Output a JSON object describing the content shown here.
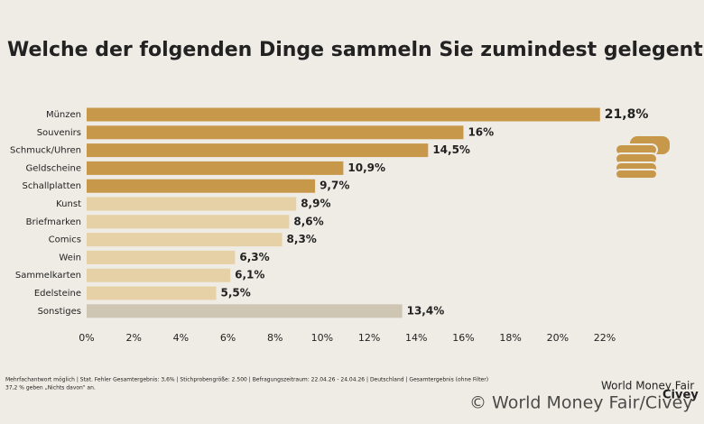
{
  "chart_data": {
    "type": "hbar",
    "title": "Welche der folgenden Dinge sammeln Sie zumindest gelegentlich?",
    "categories": [
      "Münzen",
      "Souvenirs",
      "Schmuck/Uhren",
      "Geldscheine",
      "Schallplatten",
      "Kunst",
      "Briefmarken",
      "Comics",
      "Wein",
      "Sammelkarten",
      "Edelsteine",
      "Sonstiges"
    ],
    "values": [
      21.8,
      16,
      14.5,
      10.9,
      9.7,
      8.9,
      8.6,
      8.3,
      6.3,
      6.1,
      5.5,
      13.4
    ],
    "value_labels": [
      "21,8%",
      "16%",
      "14,5%",
      "10,9%",
      "9,7%",
      "8,9%",
      "8,6%",
      "8,3%",
      "6,3%",
      "6,1%",
      "5,5%",
      "13,4%"
    ],
    "colors": [
      "#c8984a",
      "#c8984a",
      "#c8984a",
      "#c8984a",
      "#c8984a",
      "#e6d0a6",
      "#e6d0a6",
      "#e6d0a6",
      "#e6d0a6",
      "#e6d0a6",
      "#e6d0a6",
      "#cec6b3"
    ],
    "xlim": [
      0,
      22
    ],
    "xticks": [
      {
        "value": 0,
        "label": "0%"
      },
      {
        "value": 2,
        "label": "2%"
      },
      {
        "value": 4,
        "label": "4%"
      },
      {
        "value": 6,
        "label": "6%"
      },
      {
        "value": 8,
        "label": "8%"
      },
      {
        "value": 10,
        "label": "10%"
      },
      {
        "value": 12,
        "label": "12%"
      },
      {
        "value": 14,
        "label": "14%"
      },
      {
        "value": 16,
        "label": "16%"
      },
      {
        "value": 18,
        "label": "18%"
      },
      {
        "value": 20,
        "label": "20%"
      },
      {
        "value": 22,
        "label": "22%"
      }
    ]
  },
  "footer": {
    "note": "Mehrfachantwort möglich | Stat. Fehler Gesamtergebnis: 3,6% | Stichprobengröße: 2.500 | Befragungszeitraum: 22.04.26 - 24.04.26 | Deutschland | Gesamtergebnis (ohne Filter)",
    "note2": "37,2 % geben „Nichts davon“ an.",
    "logo1": "World Money Fair",
    "logo2": "Civey",
    "watermark": "© World Money Fair/Civey"
  }
}
